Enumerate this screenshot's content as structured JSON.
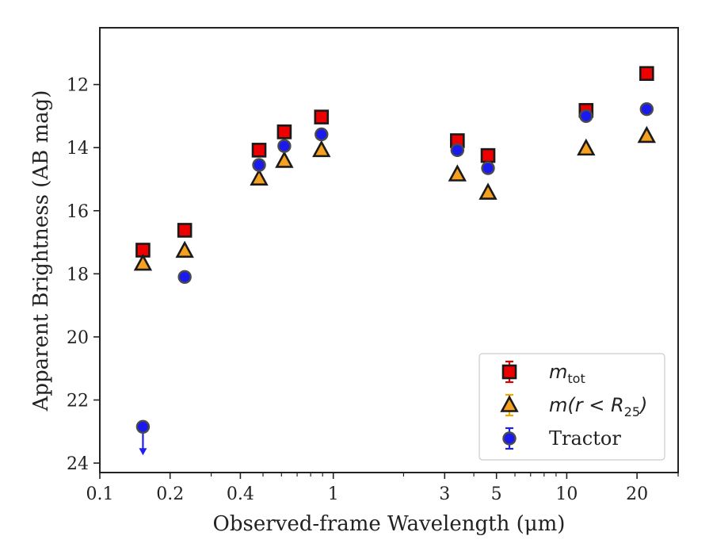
{
  "chart_data": {
    "type": "scatter",
    "title": "",
    "xlabel": "Observed-frame Wavelength (μm)",
    "ylabel": "Apparent Brightness (AB mag)",
    "xscale": "log",
    "xlim": [
      0.1,
      30
    ],
    "ylim": [
      24.3,
      10.2
    ],
    "y_inverted": true,
    "grid": false,
    "legend_position": "lower-right",
    "x_ticks": [
      {
        "value": 0.1,
        "label": "0.1"
      },
      {
        "value": 0.2,
        "label": "0.2"
      },
      {
        "value": 0.4,
        "label": "0.4"
      },
      {
        "value": 1,
        "label": "1"
      },
      {
        "value": 3,
        "label": "3"
      },
      {
        "value": 5,
        "label": "5"
      },
      {
        "value": 10,
        "label": "10"
      },
      {
        "value": 20,
        "label": "20"
      }
    ],
    "y_ticks": [
      {
        "value": 12,
        "label": "12"
      },
      {
        "value": 14,
        "label": "14"
      },
      {
        "value": 16,
        "label": "16"
      },
      {
        "value": 18,
        "label": "18"
      },
      {
        "value": 20,
        "label": "20"
      },
      {
        "value": 22,
        "label": "22"
      },
      {
        "value": 24,
        "label": "24"
      }
    ],
    "series": [
      {
        "name": "m_tot",
        "legend_main": "m",
        "legend_sub": "tot",
        "marker": "square",
        "color": "#ee0000",
        "edge_color": "#1a1a1a",
        "errbar_color": "#dd0000",
        "points": [
          {
            "x": 0.153,
            "y": 17.25
          },
          {
            "x": 0.231,
            "y": 16.62
          },
          {
            "x": 0.481,
            "y": 14.08
          },
          {
            "x": 0.617,
            "y": 13.5
          },
          {
            "x": 0.89,
            "y": 13.03
          },
          {
            "x": 3.4,
            "y": 13.78
          },
          {
            "x": 4.6,
            "y": 14.25
          },
          {
            "x": 12.1,
            "y": 12.82
          },
          {
            "x": 22.0,
            "y": 11.65
          }
        ]
      },
      {
        "name": "m(r < R25)",
        "legend_main": "m(r < R",
        "legend_sub": "25",
        "legend_close": ")",
        "marker": "triangle",
        "color": "#f5a020",
        "edge_color": "#1a1a1a",
        "errbar_color": "#f0a800",
        "points": [
          {
            "x": 0.153,
            "y": 17.68
          },
          {
            "x": 0.231,
            "y": 17.27
          },
          {
            "x": 0.481,
            "y": 14.98
          },
          {
            "x": 0.617,
            "y": 14.42
          },
          {
            "x": 0.89,
            "y": 14.08
          },
          {
            "x": 3.4,
            "y": 14.85
          },
          {
            "x": 4.6,
            "y": 15.43
          },
          {
            "x": 12.1,
            "y": 14.03
          },
          {
            "x": 22.0,
            "y": 13.63
          }
        ]
      },
      {
        "name": "Tractor",
        "marker": "circle",
        "color": "#1a1aee",
        "edge_color": "#4a4a4a",
        "errbar_color": "#2020ee",
        "points": [
          {
            "x": 0.153,
            "y": 22.85,
            "upper_limit": true
          },
          {
            "x": 0.231,
            "y": 18.1
          },
          {
            "x": 0.481,
            "y": 14.55
          },
          {
            "x": 0.617,
            "y": 13.95
          },
          {
            "x": 0.89,
            "y": 13.58
          },
          {
            "x": 3.4,
            "y": 14.08
          },
          {
            "x": 4.6,
            "y": 14.65
          },
          {
            "x": 12.1,
            "y": 13.0
          },
          {
            "x": 22.0,
            "y": 12.78
          }
        ]
      }
    ]
  }
}
